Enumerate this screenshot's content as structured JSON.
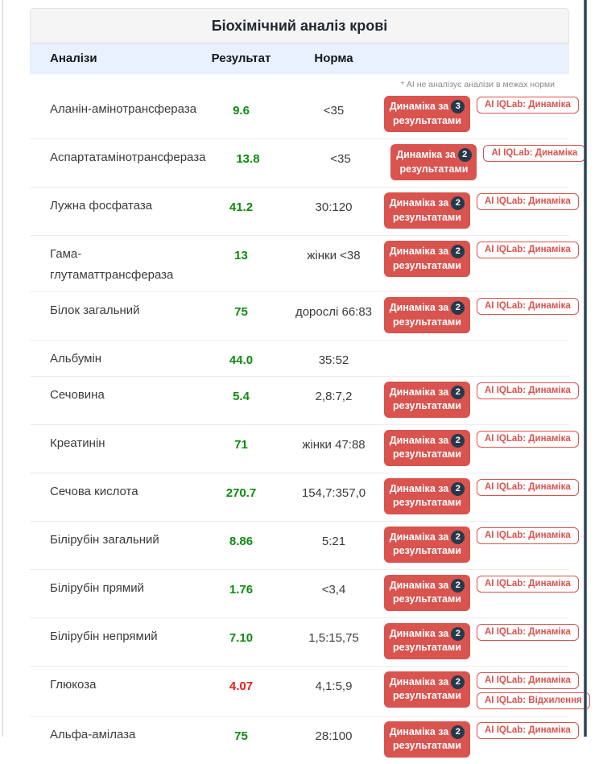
{
  "window": {
    "title": "Біохімічний аналіз крові"
  },
  "note": "* АІ не аналізує аналізи в межах норми",
  "table": {
    "headers": {
      "name": "Аналізи",
      "result": "Результат",
      "norm": "Норма"
    },
    "dynamics_button": {
      "line1": "Динаміка за",
      "line2": "результатами"
    },
    "ai_buttons": {
      "dynamics": "AI IQLab: Динаміка",
      "deviation": "AI IQLab: Відхилення"
    },
    "rows": [
      {
        "name": "Аланін-амінотрансфераза",
        "result": "9.6",
        "status": "normal",
        "norm": "<35",
        "dynamics_count": "3",
        "ai": [
          "dynamics"
        ]
      },
      {
        "name": "Аспартатамінотрансфераза",
        "result": "13.8",
        "status": "normal",
        "norm": "<35",
        "dynamics_count": "2",
        "ai": [
          "dynamics"
        ]
      },
      {
        "name": "Лужна фосфатаза",
        "result": "41.2",
        "status": "normal",
        "norm": "30:120",
        "dynamics_count": "2",
        "ai": [
          "dynamics"
        ]
      },
      {
        "name": "Гама-глутаматтрансфераза",
        "result": "13",
        "status": "normal",
        "norm": "жінки <38",
        "dynamics_count": "2",
        "ai": [
          "dynamics"
        ]
      },
      {
        "name": "Білок загальний",
        "result": "75",
        "status": "normal",
        "norm": "дорослі 66:83",
        "dynamics_count": "2",
        "ai": [
          "dynamics"
        ]
      },
      {
        "name": "Альбумін",
        "result": "44.0",
        "status": "normal",
        "norm": "35:52",
        "dynamics_count": null,
        "ai": []
      },
      {
        "name": "Сечовина",
        "result": "5.4",
        "status": "normal",
        "norm": "2,8:7,2",
        "dynamics_count": "2",
        "ai": [
          "dynamics"
        ]
      },
      {
        "name": "Креатинін",
        "result": "71",
        "status": "normal",
        "norm": "жінки 47:88",
        "dynamics_count": "2",
        "ai": [
          "dynamics"
        ]
      },
      {
        "name": "Сечова кислота",
        "result": "270.7",
        "status": "normal",
        "norm": "154,7:357,0",
        "dynamics_count": "2",
        "ai": [
          "dynamics"
        ]
      },
      {
        "name": "Білірубін загальний",
        "result": "8.86",
        "status": "normal",
        "norm": "5:21",
        "dynamics_count": "2",
        "ai": [
          "dynamics"
        ]
      },
      {
        "name": "Білірубін прямий",
        "result": "1.76",
        "status": "normal",
        "norm": "<3,4",
        "dynamics_count": "2",
        "ai": [
          "dynamics"
        ]
      },
      {
        "name": "Білірубін непрямий",
        "result": "7.10",
        "status": "normal",
        "norm": "1,5:15,75",
        "dynamics_count": "2",
        "ai": [
          "dynamics"
        ]
      },
      {
        "name": "Глюкоза",
        "result": "4.07",
        "status": "abnormal",
        "norm": "4,1:5,9",
        "dynamics_count": "2",
        "ai": [
          "dynamics",
          "deviation"
        ]
      },
      {
        "name": "Альфа-амілаза",
        "result": "75",
        "status": "normal",
        "norm": "28:100",
        "dynamics_count": "2",
        "ai": [
          "dynamics"
        ]
      }
    ]
  },
  "colors": {
    "accent_red": "#d9534f",
    "result_normal_green": "#0e8c0e",
    "result_abnormal_red": "#ee1c1c",
    "badge_bg": "#26394a",
    "header_row_bg": "#e8f1fd",
    "panel_heading_bg": "#f5f5f5"
  }
}
